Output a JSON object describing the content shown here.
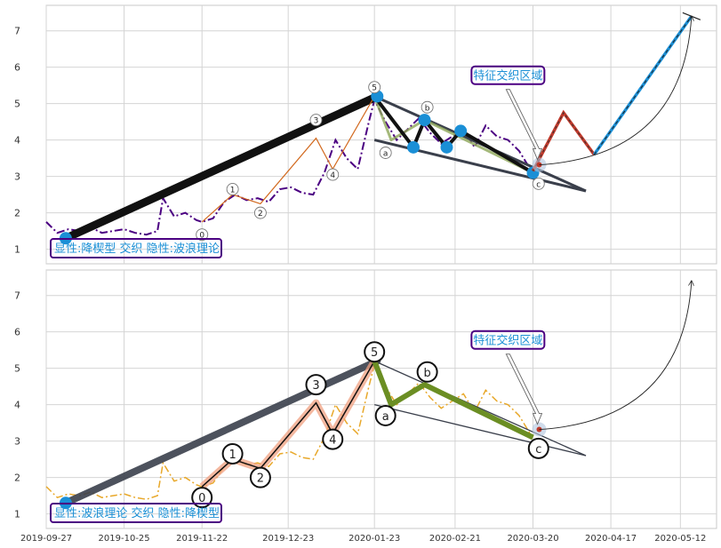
{
  "chart_data": [
    {
      "type": "line",
      "panel": "top",
      "title": "",
      "xlabel": "",
      "ylabel": "",
      "xlim": [
        "2019-09-27",
        "2020-05-25"
      ],
      "ylim": [
        0.6,
        7.7
      ],
      "x_ticks": [
        "2019-09-27",
        "2019-10-25",
        "2019-11-22",
        "2019-12-23",
        "2020-01-23",
        "2020-02-21",
        "2020-03-20",
        "2020-04-17",
        "2020-05-12"
      ],
      "y_ticks": [
        1,
        2,
        3,
        4,
        5,
        6,
        7
      ],
      "grid": true,
      "legend_box": "显性:降楔型 交织 隐性:波浪理论",
      "annotation": "特征交织区域",
      "colors": {
        "price": "#4b0082",
        "main_wave": "#111111",
        "impulse": "#d2691e",
        "correction": "#8fa85a",
        "wedge": "#3a3f4b",
        "dot": "#1a8fd6",
        "forecast_up": "#c0392b",
        "forecast_breakout": "#1a8fd6",
        "box_border": "#4b0082",
        "box_text": "#1a8fd6"
      },
      "series": [
        {
          "role": "price",
          "x": [
            "2019-09-27",
            "2019-10-01",
            "2019-10-05",
            "2019-10-09",
            "2019-10-13",
            "2019-10-17",
            "2019-10-21",
            "2019-10-25",
            "2019-10-29",
            "2019-11-02",
            "2019-11-06",
            "2019-11-08",
            "2019-11-12",
            "2019-11-16",
            "2019-11-20",
            "2019-11-22",
            "2019-11-26",
            "2019-11-30",
            "2019-12-04",
            "2019-12-08",
            "2019-12-12",
            "2019-12-16",
            "2019-12-20",
            "2019-12-24",
            "2019-12-28",
            "2020-01-01",
            "2020-01-05",
            "2020-01-09",
            "2020-01-13",
            "2020-01-17",
            "2020-01-21",
            "2020-01-23",
            "2020-01-27",
            "2020-01-31",
            "2020-02-04",
            "2020-02-08",
            "2020-02-12",
            "2020-02-16",
            "2020-02-20",
            "2020-02-24",
            "2020-02-28",
            "2020-03-03",
            "2020-03-07",
            "2020-03-11",
            "2020-03-15",
            "2020-03-19"
          ],
          "y": [
            1.75,
            1.45,
            1.55,
            1.5,
            1.6,
            1.45,
            1.5,
            1.55,
            1.45,
            1.4,
            1.5,
            2.4,
            1.9,
            2.0,
            1.8,
            1.75,
            1.85,
            2.3,
            2.5,
            2.35,
            2.4,
            2.3,
            2.65,
            2.7,
            2.55,
            2.5,
            3.1,
            4.0,
            3.5,
            3.2,
            4.5,
            5.1,
            4.5,
            4.0,
            4.3,
            4.6,
            4.2,
            3.9,
            4.1,
            4.3,
            3.8,
            4.4,
            4.1,
            4.0,
            3.7,
            3.2
          ]
        },
        {
          "role": "main_wave",
          "x": [
            "2019-10-04",
            "2020-01-24"
          ],
          "y": [
            1.3,
            5.2
          ]
        },
        {
          "role": "impulse",
          "x": [
            "2019-11-22",
            "2019-12-03",
            "2019-12-13",
            "2020-01-02",
            "2020-01-08",
            "2020-01-23"
          ],
          "y": [
            1.75,
            2.5,
            2.25,
            4.05,
            3.2,
            5.2
          ]
        },
        {
          "role": "correction",
          "x": [
            "2020-01-23",
            "2020-01-29",
            "2020-02-10",
            "2020-03-20"
          ],
          "y": [
            5.2,
            4.0,
            4.55,
            3.1
          ]
        },
        {
          "role": "correction_dots",
          "x": [
            "2020-02-06",
            "2020-02-10",
            "2020-02-18",
            "2020-02-23",
            "2020-03-20"
          ],
          "y": [
            3.8,
            4.55,
            3.8,
            4.25,
            3.1
          ]
        },
        {
          "role": "wedge_upper",
          "x": [
            "2020-01-23",
            "2020-04-08"
          ],
          "y": [
            5.2,
            2.6
          ]
        },
        {
          "role": "wedge_lower",
          "x": [
            "2020-01-23",
            "2020-04-08"
          ],
          "y": [
            4.0,
            2.6
          ]
        },
        {
          "role": "forecast_up",
          "x": [
            "2020-03-20",
            "2020-03-31",
            "2020-04-11"
          ],
          "y": [
            3.15,
            4.75,
            3.6
          ]
        },
        {
          "role": "forecast_breakout",
          "x": [
            "2020-04-11",
            "2020-05-16"
          ],
          "y": [
            3.6,
            7.4
          ]
        },
        {
          "role": "endpoint_dots",
          "x": [
            "2019-10-04",
            "2020-01-24"
          ],
          "y": [
            1.3,
            5.2
          ]
        }
      ],
      "wave_labels": [
        {
          "label": "0",
          "x": "2019-11-22",
          "y": 1.4
        },
        {
          "label": "1",
          "x": "2019-12-03",
          "y": 2.65
        },
        {
          "label": "2",
          "x": "2019-12-13",
          "y": 2.0
        },
        {
          "label": "3",
          "x": "2020-01-02",
          "y": 4.55
        },
        {
          "label": "4",
          "x": "2020-01-08",
          "y": 3.05
        },
        {
          "label": "5",
          "x": "2020-01-23",
          "y": 5.45
        },
        {
          "label": "a",
          "x": "2020-01-27",
          "y": 3.65
        },
        {
          "label": "b",
          "x": "2020-02-11",
          "y": 4.9
        },
        {
          "label": "c",
          "x": "2020-03-22",
          "y": 2.8
        }
      ]
    },
    {
      "type": "line",
      "panel": "bottom",
      "title": "",
      "xlabel": "",
      "ylabel": "",
      "xlim": [
        "2019-09-27",
        "2020-05-25"
      ],
      "ylim": [
        0.6,
        7.7
      ],
      "x_ticks": [
        "2019-09-27",
        "2019-10-25",
        "2019-11-22",
        "2019-12-23",
        "2020-01-23",
        "2020-02-21",
        "2020-03-20",
        "2020-04-17",
        "2020-05-12"
      ],
      "y_ticks": [
        1,
        2,
        3,
        4,
        5,
        6,
        7
      ],
      "grid": true,
      "legend_box": "显性:波浪理论 交织 隐性:降楔型",
      "annotation": "特征交织区域",
      "colors": {
        "price": "#e8a82a",
        "main_wave": "#3a3f4b",
        "impulse": "#f0a080",
        "correction": "#6b8e23",
        "wedge": "#3a3f4b",
        "dot": "#1a8fd6",
        "box_border": "#4b0082",
        "box_text": "#1a8fd6"
      },
      "series": [
        {
          "role": "price",
          "x": [
            "2019-09-27",
            "2019-10-01",
            "2019-10-05",
            "2019-10-09",
            "2019-10-13",
            "2019-10-17",
            "2019-10-21",
            "2019-10-25",
            "2019-10-29",
            "2019-11-02",
            "2019-11-06",
            "2019-11-08",
            "2019-11-12",
            "2019-11-16",
            "2019-11-20",
            "2019-11-22",
            "2019-11-26",
            "2019-11-30",
            "2019-12-04",
            "2019-12-08",
            "2019-12-12",
            "2019-12-16",
            "2019-12-20",
            "2019-12-24",
            "2019-12-28",
            "2020-01-01",
            "2020-01-05",
            "2020-01-09",
            "2020-01-13",
            "2020-01-17",
            "2020-01-21",
            "2020-01-23",
            "2020-01-27",
            "2020-01-31",
            "2020-02-04",
            "2020-02-08",
            "2020-02-12",
            "2020-02-16",
            "2020-02-20",
            "2020-02-24",
            "2020-02-28",
            "2020-03-03",
            "2020-03-07",
            "2020-03-11",
            "2020-03-15",
            "2020-03-19"
          ],
          "y": [
            1.75,
            1.45,
            1.55,
            1.5,
            1.6,
            1.45,
            1.5,
            1.55,
            1.45,
            1.4,
            1.5,
            2.4,
            1.9,
            2.0,
            1.8,
            1.75,
            1.85,
            2.3,
            2.5,
            2.35,
            2.4,
            2.3,
            2.65,
            2.7,
            2.55,
            2.5,
            3.1,
            4.0,
            3.5,
            3.2,
            4.5,
            5.1,
            4.5,
            4.0,
            4.3,
            4.6,
            4.2,
            3.9,
            4.1,
            4.3,
            3.8,
            4.4,
            4.1,
            4.0,
            3.7,
            3.2
          ]
        },
        {
          "role": "main_wave",
          "x": [
            "2019-10-04",
            "2020-01-24"
          ],
          "y": [
            1.3,
            5.2
          ]
        },
        {
          "role": "impulse",
          "x": [
            "2019-11-22",
            "2019-12-03",
            "2019-12-13",
            "2020-01-02",
            "2020-01-08",
            "2020-01-23"
          ],
          "y": [
            1.75,
            2.5,
            2.25,
            4.05,
            3.2,
            5.2
          ]
        },
        {
          "role": "correction",
          "x": [
            "2020-01-23",
            "2020-01-29",
            "2020-02-10",
            "2020-03-20"
          ],
          "y": [
            5.2,
            4.0,
            4.55,
            3.1
          ]
        },
        {
          "role": "wedge_upper",
          "x": [
            "2020-01-23",
            "2020-04-08"
          ],
          "y": [
            5.2,
            2.6
          ]
        },
        {
          "role": "wedge_lower",
          "x": [
            "2020-01-23",
            "2020-04-08"
          ],
          "y": [
            4.0,
            2.6
          ]
        },
        {
          "role": "endpoint_dots",
          "x": [
            "2019-10-04"
          ],
          "y": [
            1.3
          ]
        }
      ],
      "wave_labels": [
        {
          "label": "0",
          "x": "2019-11-22",
          "y": 1.45
        },
        {
          "label": "1",
          "x": "2019-12-03",
          "y": 2.65
        },
        {
          "label": "2",
          "x": "2019-12-13",
          "y": 2.0
        },
        {
          "label": "3",
          "x": "2020-01-02",
          "y": 4.55
        },
        {
          "label": "4",
          "x": "2020-01-08",
          "y": 3.05
        },
        {
          "label": "5",
          "x": "2020-01-23",
          "y": 5.45
        },
        {
          "label": "a",
          "x": "2020-01-27",
          "y": 3.7
        },
        {
          "label": "b",
          "x": "2020-02-11",
          "y": 4.9
        },
        {
          "label": "c",
          "x": "2020-03-22",
          "y": 2.8
        }
      ]
    }
  ]
}
